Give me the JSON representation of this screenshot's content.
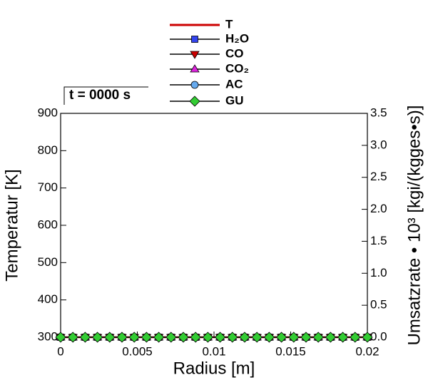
{
  "chart_data": {
    "type": "line",
    "annotation": "t = 0000 s",
    "x_label": "Radius [m]",
    "y_label": "Temperatur [K]",
    "y2_label": "Umsatzrate • 10³ [kgi/(kgges•s)]",
    "x": [
      0,
      0.0008,
      0.0016,
      0.0024,
      0.0032,
      0.004,
      0.0048,
      0.0056,
      0.0064,
      0.0072,
      0.008,
      0.0088,
      0.0096,
      0.0104,
      0.0112,
      0.012,
      0.0128,
      0.0136,
      0.0144,
      0.0152,
      0.016,
      0.0168,
      0.0176,
      0.0184,
      0.0192,
      0.02
    ],
    "xlim": [
      0,
      0.02
    ],
    "xticks": [
      0,
      0.005,
      0.01,
      0.015,
      0.02
    ],
    "ylim": [
      300,
      900
    ],
    "yticks": [
      300,
      400,
      500,
      600,
      700,
      800,
      900
    ],
    "y2lim": [
      0,
      3.5
    ],
    "y2ticks": [
      {
        "value": 0,
        "label": "0.0"
      },
      0.5,
      {
        "value": 1,
        "label": "1.0"
      },
      1.5,
      {
        "value": 2,
        "label": "2.0"
      },
      2.5,
      {
        "value": 3,
        "label": "3.0"
      },
      3.5
    ],
    "series": [
      {
        "name": "T",
        "color": "#cc0000",
        "marker": "none",
        "values": [
          300,
          300,
          300,
          300,
          300,
          300,
          300,
          300,
          300,
          300,
          300,
          300,
          300,
          300,
          300,
          300,
          300,
          300,
          300,
          300,
          300,
          300,
          300,
          300,
          300,
          300
        ]
      },
      {
        "name": "H₂O",
        "color": "#3344ee",
        "marker": "square",
        "axis": "y2",
        "values": [
          0,
          0,
          0,
          0,
          0,
          0,
          0,
          0,
          0,
          0,
          0,
          0,
          0,
          0,
          0,
          0,
          0,
          0,
          0,
          0,
          0,
          0,
          0,
          0,
          0,
          0
        ]
      },
      {
        "name": "CO",
        "color": "#cc0000",
        "marker": "triangle-down",
        "axis": "y2",
        "values": [
          0,
          0,
          0,
          0,
          0,
          0,
          0,
          0,
          0,
          0,
          0,
          0,
          0,
          0,
          0,
          0,
          0,
          0,
          0,
          0,
          0,
          0,
          0,
          0,
          0,
          0
        ]
      },
      {
        "name": "CO₂",
        "color": "#dd22dd",
        "marker": "triangle-up",
        "axis": "y2",
        "values": [
          0,
          0,
          0,
          0,
          0,
          0,
          0,
          0,
          0,
          0,
          0,
          0,
          0,
          0,
          0,
          0,
          0,
          0,
          0,
          0,
          0,
          0,
          0,
          0,
          0,
          0
        ]
      },
      {
        "name": "AC",
        "color": "#66aaee",
        "marker": "circle",
        "axis": "y2",
        "values": [
          0,
          0,
          0,
          0,
          0,
          0,
          0,
          0,
          0,
          0,
          0,
          0,
          0,
          0,
          0,
          0,
          0,
          0,
          0,
          0,
          0,
          0,
          0,
          0,
          0,
          0
        ]
      },
      {
        "name": "GU",
        "color": "#33cc33",
        "marker": "diamond",
        "axis": "y2",
        "values": [
          0,
          0,
          0,
          0,
          0,
          0,
          0,
          0,
          0,
          0,
          0,
          0,
          0,
          0,
          0,
          0,
          0,
          0,
          0,
          0,
          0,
          0,
          0,
          0,
          0,
          0
        ]
      }
    ]
  }
}
